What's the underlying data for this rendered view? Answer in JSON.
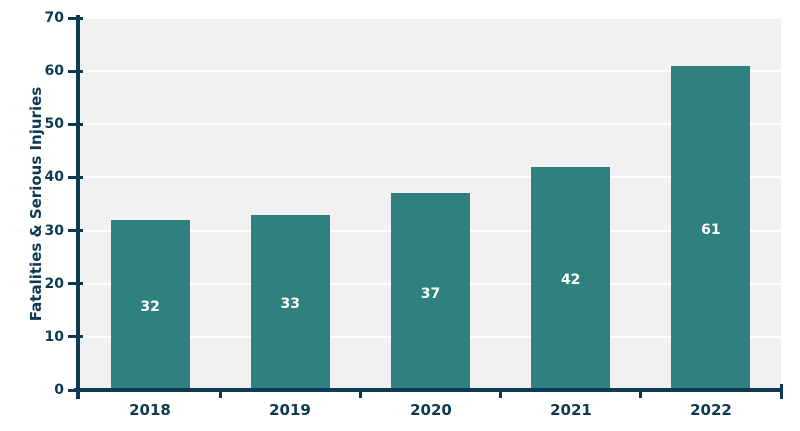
{
  "chart_data": {
    "type": "bar",
    "title": "",
    "xlabel": "",
    "ylabel": "Fatalities & Serious Injuries",
    "categories": [
      "2018",
      "2019",
      "2020",
      "2021",
      "2022"
    ],
    "values": [
      32,
      33,
      37,
      42,
      61
    ],
    "bar_value_labels": [
      "32",
      "33",
      "37",
      "42",
      "61"
    ],
    "ylim": [
      0,
      70
    ],
    "yticks": [
      0,
      10,
      20,
      30,
      40,
      50,
      60,
      70
    ],
    "grid": "horizontal-white-gridlines",
    "legend": "none",
    "bar_label_position": "inside-center",
    "colors": {
      "bar": "#2f8180",
      "axis": "#0d3a52",
      "tick_text": "#0d3a52",
      "bar_label_text": "#ffffff",
      "plot_background": "#f1f1f1",
      "gridline": "#ffffff",
      "page_background": "#ffffff"
    }
  }
}
